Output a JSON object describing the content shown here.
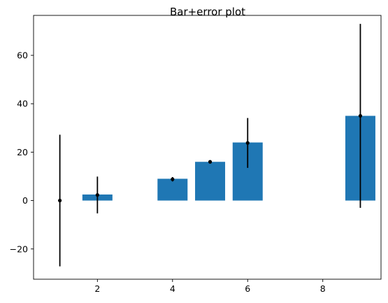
{
  "chart_data": {
    "type": "bar",
    "title": "Bar+error plot",
    "xlabel": "",
    "ylabel": "",
    "x": [
      1,
      2,
      4,
      5,
      6,
      9
    ],
    "values": [
      0,
      2.5,
      9,
      16,
      24,
      35
    ],
    "points": [
      0,
      2.3,
      8.8,
      16,
      23.8,
      35
    ],
    "errors": [
      27.2,
      7.6,
      0.9,
      0.7,
      10.3,
      38
    ],
    "xlim": [
      0.3,
      9.55
    ],
    "ylim": [
      -32.5,
      76.5
    ],
    "xticks": [
      "2",
      "4",
      "6",
      "8"
    ],
    "yticks": [
      "−20",
      "0",
      "20",
      "40",
      "60"
    ],
    "bar_color": "#1f77b4",
    "error_color": "#000000",
    "grid": false,
    "legend": "none"
  }
}
